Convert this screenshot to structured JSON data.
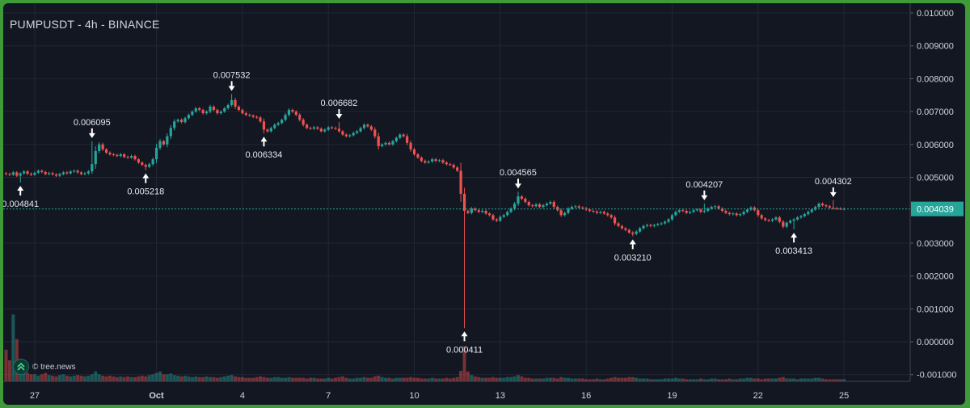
{
  "header": {
    "title": "PUMPUSDT - 4h - BINANCE"
  },
  "watermark": {
    "text": "© tree.news",
    "icon": "tree-news-logo-icon"
  },
  "colors": {
    "background": "#131722",
    "up": "#26a69a",
    "down": "#ef5350",
    "grid": "#232735",
    "axis_text": "#d1d4dc",
    "price_line": "#26a69a"
  },
  "chart_data": {
    "type": "candlestick",
    "title": "PUMPUSDT - 4h - BINANCE",
    "symbol": "PUMPUSDT",
    "interval": "4h",
    "exchange": "BINANCE",
    "x_tick_labels": [
      "27",
      "Oct",
      "4",
      "7",
      "10",
      "13",
      "16",
      "19",
      "22",
      "25"
    ],
    "y_tick_labels": [
      "0.010000",
      "0.009000",
      "0.008000",
      "0.007000",
      "0.006000",
      "0.005000",
      "0.003000",
      "0.002000",
      "0.001000",
      "0.000000",
      "-0.001000"
    ],
    "ylim": [
      -0.0012,
      0.0104
    ],
    "grid": true,
    "current_price": {
      "value": 0.004039,
      "label": "0.004039"
    },
    "annotations": [
      {
        "label": "0.004841",
        "x": "Sep 26",
        "value": 0.004841,
        "type": "low"
      },
      {
        "label": "0.006095",
        "x": "Sep 29",
        "value": 0.006095,
        "type": "high"
      },
      {
        "label": "0.005218",
        "x": "Sep 30",
        "value": 0.005218,
        "type": "low"
      },
      {
        "label": "0.007532",
        "x": "Oct 3",
        "value": 0.007532,
        "type": "high"
      },
      {
        "label": "0.006334",
        "x": "Oct 4",
        "value": 0.006334,
        "type": "low"
      },
      {
        "label": "0.006682",
        "x": "Oct 7",
        "value": 0.006682,
        "type": "high"
      },
      {
        "label": "0.000411",
        "x": "Oct 10",
        "value": 0.000411,
        "type": "low"
      },
      {
        "label": "0.004565",
        "x": "Oct 12",
        "value": 0.004565,
        "type": "high"
      },
      {
        "label": "0.003210",
        "x": "Oct 17",
        "value": 0.00321,
        "type": "low"
      },
      {
        "label": "0.004207",
        "x": "Oct 20",
        "value": 0.004207,
        "type": "high"
      },
      {
        "label": "0.003413",
        "x": "Oct 22",
        "value": 0.003413,
        "type": "low"
      },
      {
        "label": "0.004302",
        "x": "Oct 24",
        "value": 0.004302,
        "type": "high"
      }
    ],
    "closes_4h": [
      0.0051,
      0.00508,
      0.00515,
      0.00505,
      0.00512,
      0.00518,
      0.00511,
      0.00508,
      0.00514,
      0.0052,
      0.00516,
      0.0051,
      0.00513,
      0.00509,
      0.00505,
      0.0051,
      0.00515,
      0.00512,
      0.00518,
      0.0052,
      0.00515,
      0.0051,
      0.00512,
      0.00518,
      0.0054,
      0.0058,
      0.006,
      0.00585,
      0.00575,
      0.0057,
      0.00568,
      0.00565,
      0.0057,
      0.00562,
      0.0056,
      0.00565,
      0.00555,
      0.00545,
      0.00538,
      0.00532,
      0.0054,
      0.00555,
      0.0059,
      0.0061,
      0.006,
      0.00625,
      0.0065,
      0.0067,
      0.00675,
      0.00668,
      0.0068,
      0.0069,
      0.007,
      0.0071,
      0.00705,
      0.00695,
      0.007,
      0.00715,
      0.00705,
      0.00695,
      0.007,
      0.0071,
      0.0072,
      0.00735,
      0.00715,
      0.00705,
      0.00695,
      0.0069,
      0.00688,
      0.00684,
      0.00682,
      0.0067,
      0.00645,
      0.0064,
      0.0065,
      0.0066,
      0.00665,
      0.00675,
      0.0069,
      0.00705,
      0.007,
      0.0069,
      0.00675,
      0.0066,
      0.0065,
      0.00648,
      0.00652,
      0.00648,
      0.0064,
      0.00645,
      0.00652,
      0.0065,
      0.00648,
      0.0064,
      0.0063,
      0.00625,
      0.00628,
      0.00635,
      0.0064,
      0.0065,
      0.0066,
      0.00655,
      0.00645,
      0.00625,
      0.00595,
      0.006,
      0.00605,
      0.006,
      0.0061,
      0.0062,
      0.0063,
      0.00625,
      0.00605,
      0.00585,
      0.0057,
      0.0056,
      0.0055,
      0.00545,
      0.00548,
      0.00555,
      0.0055,
      0.00552,
      0.00545,
      0.0054,
      0.00538,
      0.0053,
      0.0052,
      0.0045,
      0.00398,
      0.00392,
      0.00405,
      0.004,
      0.00395,
      0.00398,
      0.0039,
      0.00385,
      0.00372,
      0.00368,
      0.0038,
      0.00385,
      0.00395,
      0.00405,
      0.0042,
      0.00442,
      0.00435,
      0.00425,
      0.00415,
      0.00412,
      0.00418,
      0.0041,
      0.00415,
      0.0042,
      0.00425,
      0.0041,
      0.004,
      0.00385,
      0.00392,
      0.00405,
      0.0041,
      0.00412,
      0.00408,
      0.00406,
      0.00402,
      0.00398,
      0.00396,
      0.00392,
      0.00395,
      0.0039,
      0.00385,
      0.00378,
      0.0036,
      0.00352,
      0.00345,
      0.0034,
      0.00332,
      0.00328,
      0.00335,
      0.00345,
      0.00352,
      0.00355,
      0.00352,
      0.00355,
      0.00358,
      0.0036,
      0.00365,
      0.00372,
      0.00385,
      0.00395,
      0.004,
      0.00398,
      0.00392,
      0.00395,
      0.004,
      0.00402,
      0.00395,
      0.00398,
      0.00405,
      0.0041,
      0.00412,
      0.00405,
      0.00398,
      0.00392,
      0.00388,
      0.0039,
      0.00385,
      0.00388,
      0.00395,
      0.00402,
      0.00408,
      0.004,
      0.00385,
      0.00375,
      0.0037,
      0.00368,
      0.00372,
      0.00378,
      0.00365,
      0.0035,
      0.00362,
      0.00368,
      0.00372,
      0.00378,
      0.00382,
      0.00388,
      0.00395,
      0.00402,
      0.0041,
      0.0042,
      0.00415,
      0.00412,
      0.00408,
      0.00406,
      0.00405,
      0.00404,
      0.00404
    ],
    "volume_relative": [
      0.45,
      0.3,
      0.95,
      0.6,
      0.25,
      0.18,
      0.12,
      0.1,
      0.1,
      0.08,
      0.1,
      0.12,
      0.09,
      0.08,
      0.07,
      0.09,
      0.1,
      0.08,
      0.07,
      0.08,
      0.09,
      0.08,
      0.07,
      0.08,
      0.1,
      0.14,
      0.1,
      0.08,
      0.07,
      0.08,
      0.07,
      0.06,
      0.07,
      0.06,
      0.07,
      0.06,
      0.06,
      0.07,
      0.08,
      0.07,
      0.09,
      0.1,
      0.12,
      0.14,
      0.1,
      0.1,
      0.11,
      0.09,
      0.08,
      0.07,
      0.08,
      0.07,
      0.06,
      0.07,
      0.06,
      0.06,
      0.07,
      0.06,
      0.06,
      0.05,
      0.06,
      0.07,
      0.08,
      0.09,
      0.07,
      0.06,
      0.06,
      0.05,
      0.05,
      0.05,
      0.06,
      0.07,
      0.06,
      0.05,
      0.05,
      0.06,
      0.06,
      0.05,
      0.05,
      0.06,
      0.05,
      0.05,
      0.05,
      0.05,
      0.04,
      0.05,
      0.05,
      0.04,
      0.04,
      0.04,
      0.05,
      0.04,
      0.05,
      0.06,
      0.07,
      0.05,
      0.04,
      0.04,
      0.05,
      0.05,
      0.06,
      0.05,
      0.05,
      0.07,
      0.08,
      0.06,
      0.05,
      0.05,
      0.04,
      0.05,
      0.05,
      0.05,
      0.05,
      0.06,
      0.05,
      0.05,
      0.04,
      0.04,
      0.04,
      0.05,
      0.04,
      0.04,
      0.04,
      0.05,
      0.04,
      0.05,
      0.06,
      0.15,
      0.5,
      0.14,
      0.09,
      0.07,
      0.06,
      0.05,
      0.05,
      0.05,
      0.06,
      0.05,
      0.05,
      0.05,
      0.06,
      0.06,
      0.07,
      0.09,
      0.07,
      0.05,
      0.05,
      0.04,
      0.04,
      0.04,
      0.04,
      0.05,
      0.05,
      0.05,
      0.04,
      0.06,
      0.05,
      0.05,
      0.04,
      0.04,
      0.04,
      0.04,
      0.03,
      0.03,
      0.03,
      0.04,
      0.03,
      0.03,
      0.04,
      0.05,
      0.06,
      0.05,
      0.05,
      0.05,
      0.06,
      0.06,
      0.05,
      0.04,
      0.04,
      0.04,
      0.03,
      0.03,
      0.03,
      0.03,
      0.04,
      0.04,
      0.04,
      0.05,
      0.04,
      0.04,
      0.03,
      0.03,
      0.03,
      0.03,
      0.04,
      0.03,
      0.03,
      0.04,
      0.04,
      0.03,
      0.03,
      0.03,
      0.04,
      0.03,
      0.03,
      0.04,
      0.04,
      0.05,
      0.05,
      0.04,
      0.04,
      0.03,
      0.04,
      0.04,
      0.04,
      0.04,
      0.05,
      0.06,
      0.04,
      0.04,
      0.04,
      0.03,
      0.04,
      0.04,
      0.04,
      0.04,
      0.05,
      0.05,
      0.04,
      0.03,
      0.03,
      0.03,
      0.03,
      0.03,
      0.03
    ]
  }
}
